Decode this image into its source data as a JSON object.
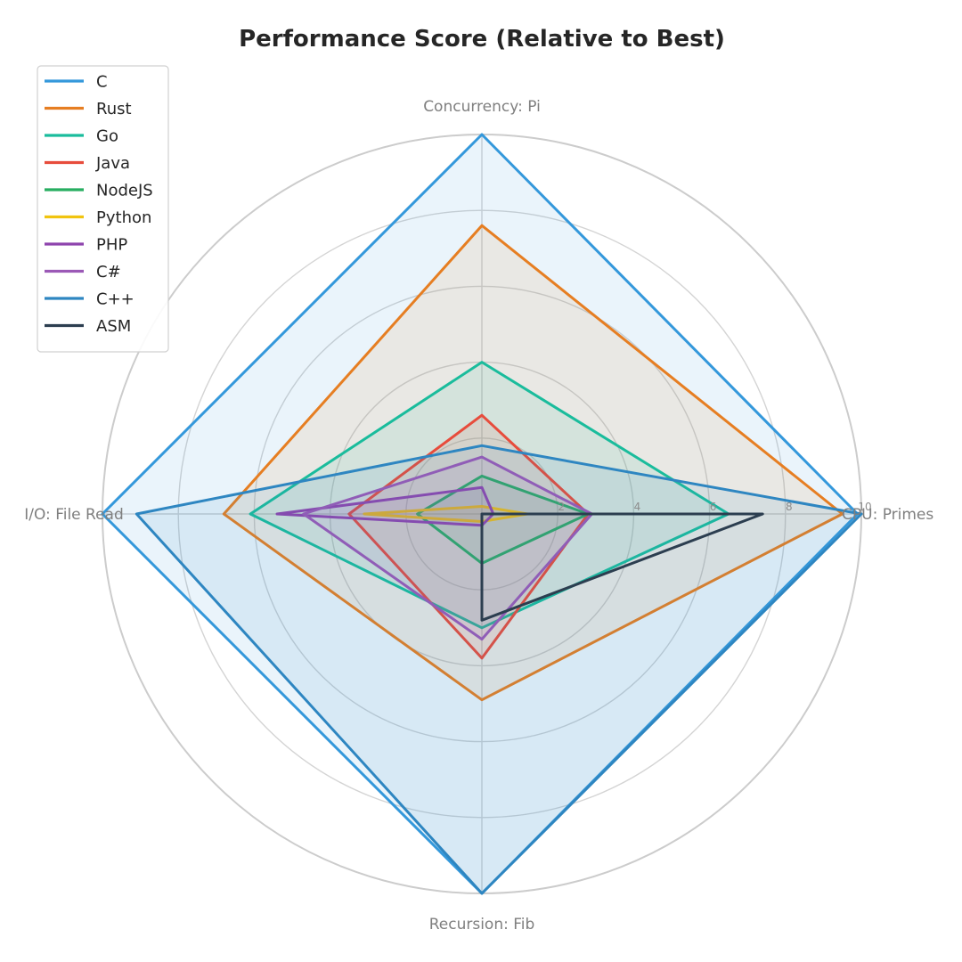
{
  "chart_data": {
    "type": "radar",
    "title": "Performance Score (Relative to Best)",
    "axes": [
      "CPU: Primes",
      "Concurrency: Pi",
      "I/O: File Read",
      "Recursion: Fib"
    ],
    "rlim": [
      0,
      10
    ],
    "r_ticks": [
      "2",
      "4",
      "6",
      "8",
      "10"
    ],
    "grid": true,
    "legend_position": "top-left",
    "series": [
      {
        "name": "C",
        "color": "#3498db",
        "values": [
          9.9,
          10.0,
          10.0,
          10.0
        ],
        "fill": true,
        "fill_opacity": 0.1
      },
      {
        "name": "Rust",
        "color": "#e67e22",
        "values": [
          9.5,
          7.6,
          6.8,
          4.9
        ],
        "fill": true,
        "fill_opacity": 0.1
      },
      {
        "name": "Go",
        "color": "#1abc9c",
        "values": [
          6.5,
          4.0,
          6.1,
          3.0
        ],
        "fill": true,
        "fill_opacity": 0.1
      },
      {
        "name": "Java",
        "color": "#e74c3c",
        "values": [
          2.8,
          2.6,
          3.5,
          3.8
        ],
        "fill": true,
        "fill_opacity": 0.1
      },
      {
        "name": "NodeJS",
        "color": "#27ae60",
        "values": [
          2.8,
          1.0,
          1.7,
          1.3
        ],
        "fill": true,
        "fill_opacity": 0.1
      },
      {
        "name": "Python",
        "color": "#f1c40f",
        "values": [
          1.2,
          0.2,
          3.1,
          0.2
        ],
        "fill": true,
        "fill_opacity": 0.1
      },
      {
        "name": "PHP",
        "color": "#8e44ad",
        "values": [
          0.3,
          0.7,
          5.4,
          0.3
        ],
        "fill": true,
        "fill_opacity": 0.1
      },
      {
        "name": "C#",
        "color": "#9b59b6",
        "values": [
          2.9,
          1.5,
          4.7,
          3.3
        ],
        "fill": true,
        "fill_opacity": 0.1
      },
      {
        "name": "C++",
        "color": "#2e86c1",
        "values": [
          10.0,
          1.8,
          9.1,
          10.0
        ],
        "fill": true,
        "fill_opacity": 0.1
      },
      {
        "name": "ASM",
        "color": "#2c3e50",
        "values": [
          7.4,
          0.0,
          0.0,
          2.8
        ],
        "fill": false,
        "fill_opacity": 0.0
      }
    ]
  }
}
